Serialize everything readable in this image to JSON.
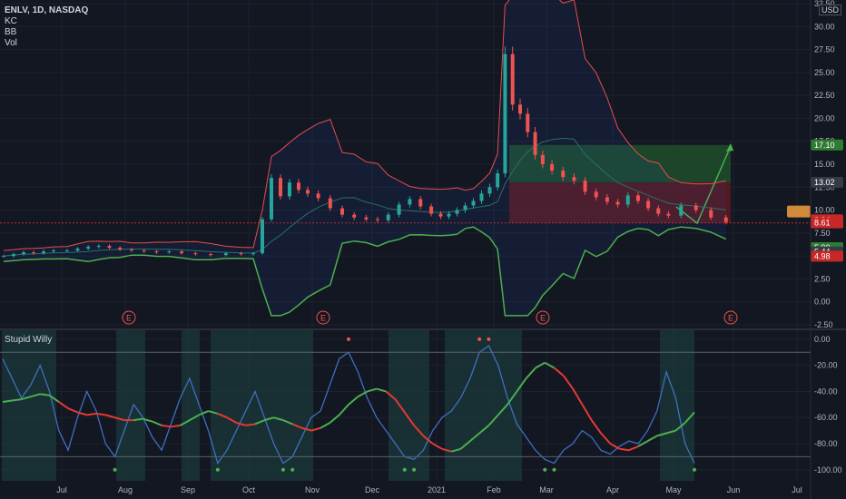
{
  "header": {
    "symbol_line": "ENLV, 1D, NASDAQ",
    "indicators": [
      "KC",
      "BB",
      "Vol"
    ],
    "currency": "USD"
  },
  "sub_pane": {
    "title": "Stupid Willy"
  },
  "colors": {
    "background": "#131722",
    "grid": "#1e222d",
    "bull": "#26a69a",
    "bear": "#ef5350",
    "bb_lower": "#4caf50",
    "kc": "#e84c4c",
    "willy": "#3f6fbf",
    "smooth_up": "#4caf50",
    "smooth_down": "#e53935",
    "zone": "#1b3a3a",
    "long_target": "#1e4d2b",
    "long_stop": "#5c1a1f"
  },
  "chart_data": [
    {
      "type": "line",
      "name": "price",
      "x_ticks": [
        "Jul",
        "Aug",
        "Sep",
        "Oct",
        "Nov",
        "Dec",
        "2021",
        "Feb",
        "Mar",
        "Apr",
        "May",
        "Jun",
        "Jul"
      ],
      "y_ticks": [
        "32.50",
        "30.00",
        "27.50",
        "25.00",
        "22.50",
        "20.00",
        "17.50",
        "15.00",
        "12.50",
        "10.00",
        "7.50",
        "5.00",
        "2.50",
        "0.00",
        "-2.50"
      ],
      "ylim": [
        -2.5,
        32.5
      ],
      "earnings_marker": "E",
      "price_labels": [
        {
          "value": 17.1,
          "text": "17.10",
          "color": "#2e7d32"
        },
        {
          "value": 13.02,
          "text": "13.02",
          "color": "#363a45"
        },
        {
          "value": 8.94,
          "text": "8.94",
          "color": "#c62828"
        },
        {
          "value": 8.61,
          "text": "8.61",
          "color": "#c62828"
        },
        {
          "value": 5.9,
          "text": "5.90",
          "color": "#2e7d32"
        },
        {
          "value": 5.44,
          "text": "5.44",
          "color": "#363a45"
        },
        {
          "value": 4.98,
          "text": "4.98",
          "color": "#c62828"
        }
      ],
      "position_tool": {
        "entry": 8.6,
        "stop": 13.02,
        "target": 17.1,
        "start": "Feb",
        "end": "Jun"
      },
      "close_series": [
        {
          "month": "Jul",
          "values": [
            5.6,
            5.8,
            6.0,
            6.1,
            5.9,
            5.7
          ]
        },
        {
          "month": "Aug",
          "values": [
            5.6,
            5.5,
            5.4,
            5.5,
            5.3
          ]
        },
        {
          "month": "Sep",
          "values": [
            5.2,
            5.1,
            5.3,
            5.2
          ]
        },
        {
          "month": "Oct",
          "values": [
            5.3,
            9.0,
            13.5,
            11.5,
            13.0,
            12.2,
            11.8
          ]
        },
        {
          "month": "Nov",
          "values": [
            11.3,
            10.2,
            9.5,
            9.2,
            9.0
          ]
        },
        {
          "month": "Dec",
          "values": [
            8.9,
            9.5,
            10.6,
            11.2,
            10.4,
            9.6
          ]
        },
        {
          "month": "2021",
          "values": [
            9.3,
            9.6,
            10.0,
            10.5,
            11.0,
            11.8,
            12.5
          ]
        },
        {
          "month": "Feb",
          "values": [
            14.0,
            27.0,
            21.5,
            20.5,
            18.5,
            16.0,
            15.0
          ]
        },
        {
          "month": "Mar",
          "values": [
            14.3,
            13.6,
            13.2,
            12.0,
            11.4,
            10.9
          ]
        },
        {
          "month": "Apr",
          "values": [
            10.6,
            11.6,
            11.0,
            10.2,
            9.6,
            9.4
          ]
        },
        {
          "month": "May",
          "values": [
            10.5,
            10.0,
            9.2,
            8.7
          ]
        }
      ]
    },
    {
      "type": "line",
      "name": "Stupid Willy",
      "y_ticks": [
        "0.00",
        "-20.00",
        "-40.00",
        "-60.00",
        "-80.00",
        "-100.00"
      ],
      "ylim": [
        -105,
        2
      ],
      "willy": [
        -15,
        -30,
        -45,
        -35,
        -20,
        -40,
        -70,
        -85,
        -60,
        -40,
        -55,
        -80,
        -90,
        -70,
        -50,
        -60,
        -75,
        -85,
        -65,
        -45,
        -30,
        -50,
        -70,
        -95,
        -85,
        -70,
        -55,
        -40,
        -60,
        -80,
        -95,
        -90,
        -75,
        -60,
        -55,
        -35,
        -15,
        -10,
        -25,
        -45,
        -60,
        -70,
        -80,
        -90,
        -92,
        -85,
        -70,
        -60,
        -55,
        -45,
        -30,
        -10,
        -5,
        -20,
        -45,
        -65,
        -75,
        -85,
        -92,
        -95,
        -85,
        -80,
        -70,
        -75,
        -85,
        -88,
        -82,
        -78,
        -80,
        -70,
        -55,
        -25,
        -45,
        -80,
        -95
      ],
      "smooth": [
        -48,
        -47,
        -46,
        -44,
        -42,
        -43,
        -48,
        -53,
        -56,
        -58,
        -57,
        -58,
        -60,
        -62,
        -62,
        -61,
        -63,
        -66,
        -67,
        -66,
        -62,
        -58,
        -55,
        -57,
        -60,
        -64,
        -66,
        -65,
        -62,
        -60,
        -62,
        -65,
        -68,
        -70,
        -68,
        -64,
        -58,
        -50,
        -44,
        -40,
        -38,
        -40,
        -46,
        -56,
        -66,
        -74,
        -80,
        -84,
        -86,
        -84,
        -78,
        -72,
        -66,
        -58,
        -50,
        -40,
        -30,
        -22,
        -18,
        -22,
        -28,
        -38,
        -50,
        -62,
        -72,
        -80,
        -84,
        -85,
        -82,
        -78,
        -74,
        -72,
        -70,
        -64,
        -56
      ],
      "smooth_trend": [
        "up",
        "up",
        "up",
        "up",
        "up",
        "up",
        "down",
        "down",
        "down",
        "down",
        "down",
        "down",
        "down",
        "down",
        "up",
        "up",
        "up",
        "down",
        "down",
        "up",
        "up",
        "up",
        "up",
        "down",
        "down",
        "down",
        "down",
        "up",
        "up",
        "up",
        "up",
        "down",
        "down",
        "down",
        "up",
        "up",
        "up",
        "up",
        "up",
        "up",
        "up",
        "down",
        "down",
        "down",
        "down",
        "down",
        "down",
        "down",
        "up",
        "up",
        "up",
        "up",
        "up",
        "up",
        "up",
        "up",
        "up",
        "up",
        "up",
        "down",
        "down",
        "down",
        "down",
        "down",
        "down",
        "down",
        "down",
        "down",
        "up",
        "up",
        "up",
        "up",
        "up",
        "up",
        "down"
      ]
    }
  ]
}
